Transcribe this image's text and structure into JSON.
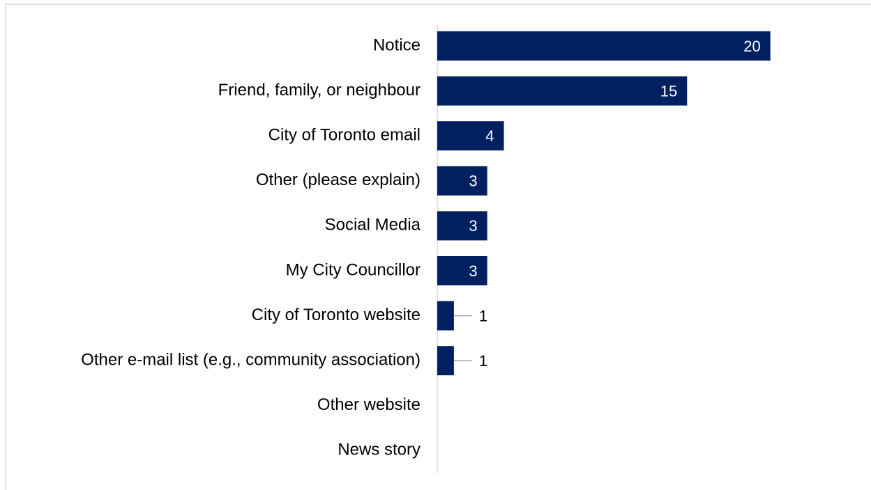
{
  "chart_data": {
    "type": "hbar",
    "categories": [
      "Notice",
      "Friend, family, or neighbour",
      "City of Toronto email",
      "Other (please explain)",
      "Social Media",
      "My City Councillor",
      "City of Toronto website",
      "Other e-mail list (e.g., community association)",
      "Other website",
      "News story"
    ],
    "values": [
      20,
      15,
      4,
      3,
      3,
      3,
      1,
      1,
      0,
      0
    ],
    "color": "#002060",
    "xlim": [
      0,
      26
    ]
  }
}
